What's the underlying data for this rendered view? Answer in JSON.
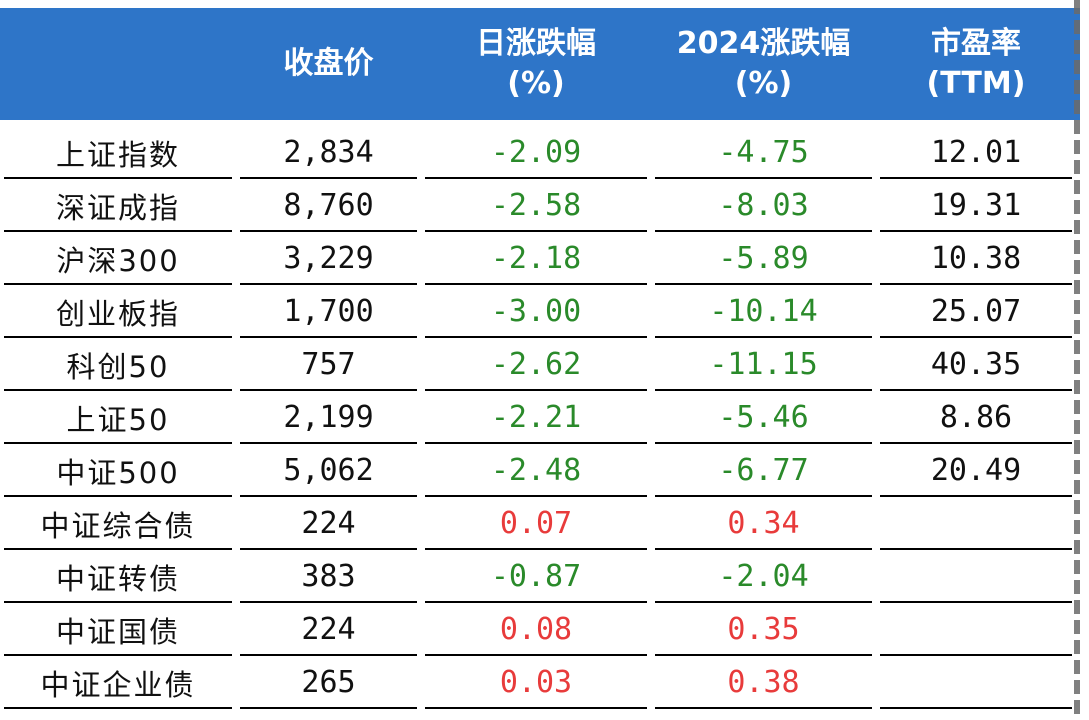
{
  "headers": {
    "close": "收盘价",
    "daily_line1": "日涨跌幅",
    "daily_line2": "(%)",
    "ytd_line1": "2024涨跌幅",
    "ytd_line2": "(%)",
    "pe_line1": "市盈率",
    "pe_line2": "(TTM)"
  },
  "colors": {
    "header_bg": "#2e75c8",
    "negative": "#2a8a2a",
    "positive": "#e83b3b"
  },
  "rows": [
    {
      "name": "上证指数",
      "close": "2,834",
      "daily": "-2.09",
      "ytd": "-4.75",
      "pe": "12.01"
    },
    {
      "name": "深证成指",
      "close": "8,760",
      "daily": "-2.58",
      "ytd": "-8.03",
      "pe": "19.31"
    },
    {
      "name": "沪深300",
      "close": "3,229",
      "daily": "-2.18",
      "ytd": "-5.89",
      "pe": "10.38"
    },
    {
      "name": "创业板指",
      "close": "1,700",
      "daily": "-3.00",
      "ytd": "-10.14",
      "pe": "25.07"
    },
    {
      "name": "科创50",
      "close": "757",
      "daily": "-2.62",
      "ytd": "-11.15",
      "pe": "40.35"
    },
    {
      "name": "上证50",
      "close": "2,199",
      "daily": "-2.21",
      "ytd": "-5.46",
      "pe": "8.86"
    },
    {
      "name": "中证500",
      "close": "5,062",
      "daily": "-2.48",
      "ytd": "-6.77",
      "pe": "20.49"
    },
    {
      "name": "中证综合债",
      "close": "224",
      "daily": "0.07",
      "ytd": "0.34",
      "pe": ""
    },
    {
      "name": "中证转债",
      "close": "383",
      "daily": "-0.87",
      "ytd": "-2.04",
      "pe": ""
    },
    {
      "name": "中证国债",
      "close": "224",
      "daily": "0.08",
      "ytd": "0.35",
      "pe": ""
    },
    {
      "name": "中证企业债",
      "close": "265",
      "daily": "0.03",
      "ytd": "0.38",
      "pe": ""
    }
  ]
}
